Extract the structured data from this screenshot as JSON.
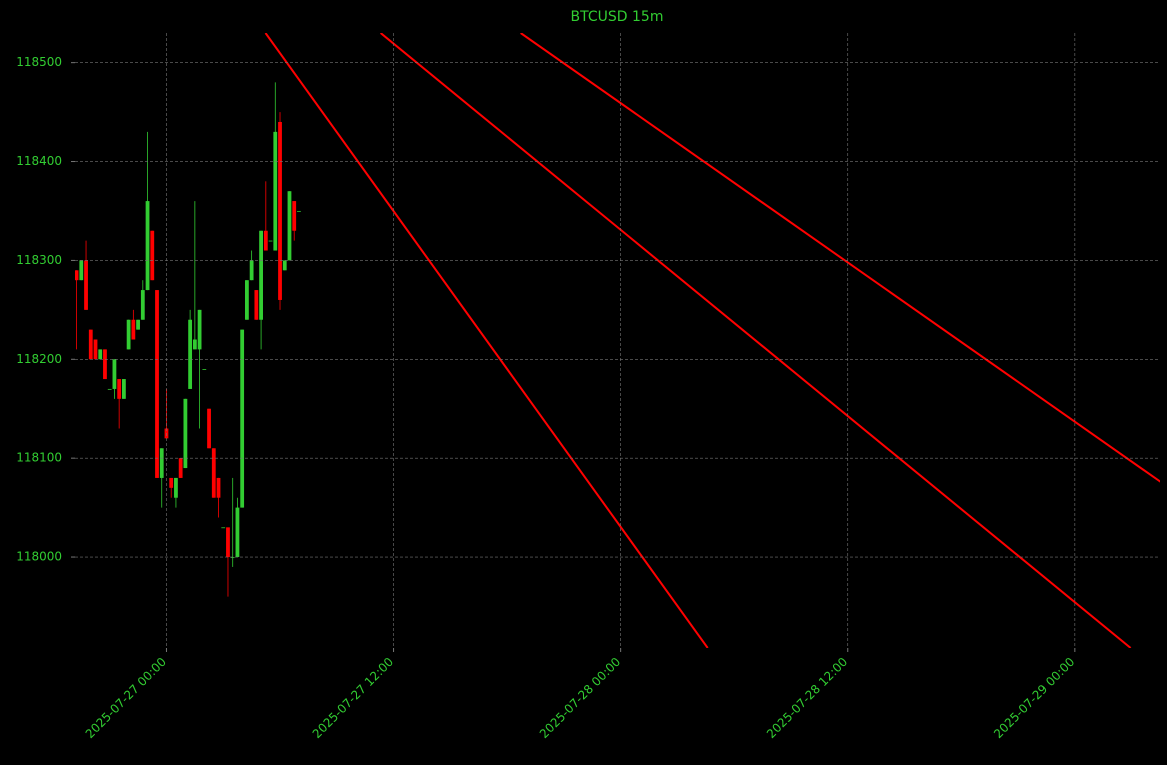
{
  "chart_data": {
    "type": "candlestick",
    "title": "BTCUSD 15m",
    "x": [
      "2025-07-26 19:15",
      "2025-07-26 19:30",
      "2025-07-26 19:45",
      "2025-07-26 20:00",
      "2025-07-26 20:15",
      "2025-07-26 20:30",
      "2025-07-26 20:45",
      "2025-07-26 21:00",
      "2025-07-26 21:15",
      "2025-07-26 21:30",
      "2025-07-26 21:45",
      "2025-07-26 22:00",
      "2025-07-26 22:15",
      "2025-07-26 22:30",
      "2025-07-26 22:45",
      "2025-07-26 23:00",
      "2025-07-26 23:15",
      "2025-07-26 23:30",
      "2025-07-26 23:45",
      "2025-07-27 00:00",
      "2025-07-27 00:15",
      "2025-07-27 00:30",
      "2025-07-27 00:45",
      "2025-07-27 01:00",
      "2025-07-27 01:15",
      "2025-07-27 01:30",
      "2025-07-27 01:45",
      "2025-07-27 02:00",
      "2025-07-27 02:15",
      "2025-07-27 02:30",
      "2025-07-27 02:45",
      "2025-07-27 03:00",
      "2025-07-27 03:15",
      "2025-07-27 03:30",
      "2025-07-27 03:45",
      "2025-07-27 04:00",
      "2025-07-27 04:15",
      "2025-07-27 04:30",
      "2025-07-27 04:45",
      "2025-07-27 05:00",
      "2025-07-27 05:15",
      "2025-07-27 05:30",
      "2025-07-27 05:45",
      "2025-07-27 06:00",
      "2025-07-27 06:15",
      "2025-07-27 06:30",
      "2025-07-27 06:45",
      "2025-07-27 07:00"
    ],
    "open": [
      118290,
      118280,
      118300,
      118230,
      118220,
      118200,
      118210,
      118170,
      118170,
      118180,
      118160,
      118210,
      118240,
      118230,
      118240,
      118270,
      118330,
      118270,
      118080,
      118130,
      118080,
      118060,
      118100,
      118090,
      118170,
      118210,
      118210,
      118190,
      118150,
      118110,
      118080,
      118030,
      118030,
      118000,
      118000,
      118050,
      118240,
      118280,
      118270,
      118240,
      118330,
      118320,
      118310,
      118440,
      118290,
      118300,
      118360,
      118350
    ],
    "high": [
      118290,
      118300,
      118320,
      118230,
      118220,
      118210,
      118210,
      118170,
      118200,
      118180,
      118180,
      118240,
      118250,
      118240,
      118280,
      118430,
      118330,
      118270,
      118110,
      118170,
      118080,
      118080,
      118100,
      118160,
      118250,
      118360,
      118250,
      118190,
      118150,
      118110,
      118080,
      118030,
      118030,
      118080,
      118060,
      118230,
      118280,
      118310,
      118270,
      118330,
      118380,
      118320,
      118480,
      118450,
      118300,
      118370,
      118360,
      118350
    ],
    "low": [
      118210,
      118280,
      118250,
      118200,
      118200,
      118200,
      118180,
      118170,
      118160,
      118130,
      118160,
      118210,
      118220,
      118230,
      118240,
      118270,
      118280,
      118080,
      118050,
      118120,
      118060,
      118050,
      118080,
      118090,
      118170,
      118210,
      118130,
      118190,
      118110,
      118060,
      118040,
      118030,
      117960,
      117990,
      118000,
      118050,
      118240,
      118280,
      118240,
      118210,
      118310,
      118320,
      118310,
      118250,
      118290,
      118300,
      118320,
      118350
    ],
    "close": [
      118280,
      118300,
      118250,
      118200,
      118200,
      118210,
      118180,
      118170,
      118200,
      118160,
      118180,
      118240,
      118220,
      118240,
      118270,
      118360,
      118280,
      118080,
      118110,
      118120,
      118070,
      118080,
      118080,
      118160,
      118240,
      118220,
      118250,
      118190,
      118110,
      118060,
      118060,
      118030,
      118000,
      118000,
      118050,
      118230,
      118280,
      118300,
      118240,
      118330,
      118310,
      118320,
      118430,
      118260,
      118300,
      118370,
      118330,
      118350
    ],
    "up_color": "#32cd32",
    "down_color": "#ff0000",
    "lines": [
      {
        "x": [
          "2025-07-27 05:14",
          "2025-07-28 04:36"
        ],
        "values": [
          118530,
          117908
        ],
        "color": "#ff0000"
      },
      {
        "x": [
          "2025-07-27 11:19",
          "2025-07-29 02:57"
        ],
        "values": [
          118530,
          117908
        ],
        "color": "#ff0000"
      },
      {
        "x": [
          "2025-07-27 18:43",
          "2025-07-29 04:32"
        ],
        "values": [
          118530,
          118076
        ],
        "color": "#ff0000"
      }
    ],
    "xlim": [
      "2025-07-26 19:10",
      "2025-07-29 04:30"
    ],
    "xticks": [
      "2025-07-27 00:00",
      "2025-07-27 12:00",
      "2025-07-28 00:00",
      "2025-07-28 12:00",
      "2025-07-29 00:00"
    ],
    "ylim": [
      117908,
      118530
    ],
    "yticks": [
      118000,
      118100,
      118200,
      118300,
      118400,
      118500
    ],
    "grid": true
  }
}
